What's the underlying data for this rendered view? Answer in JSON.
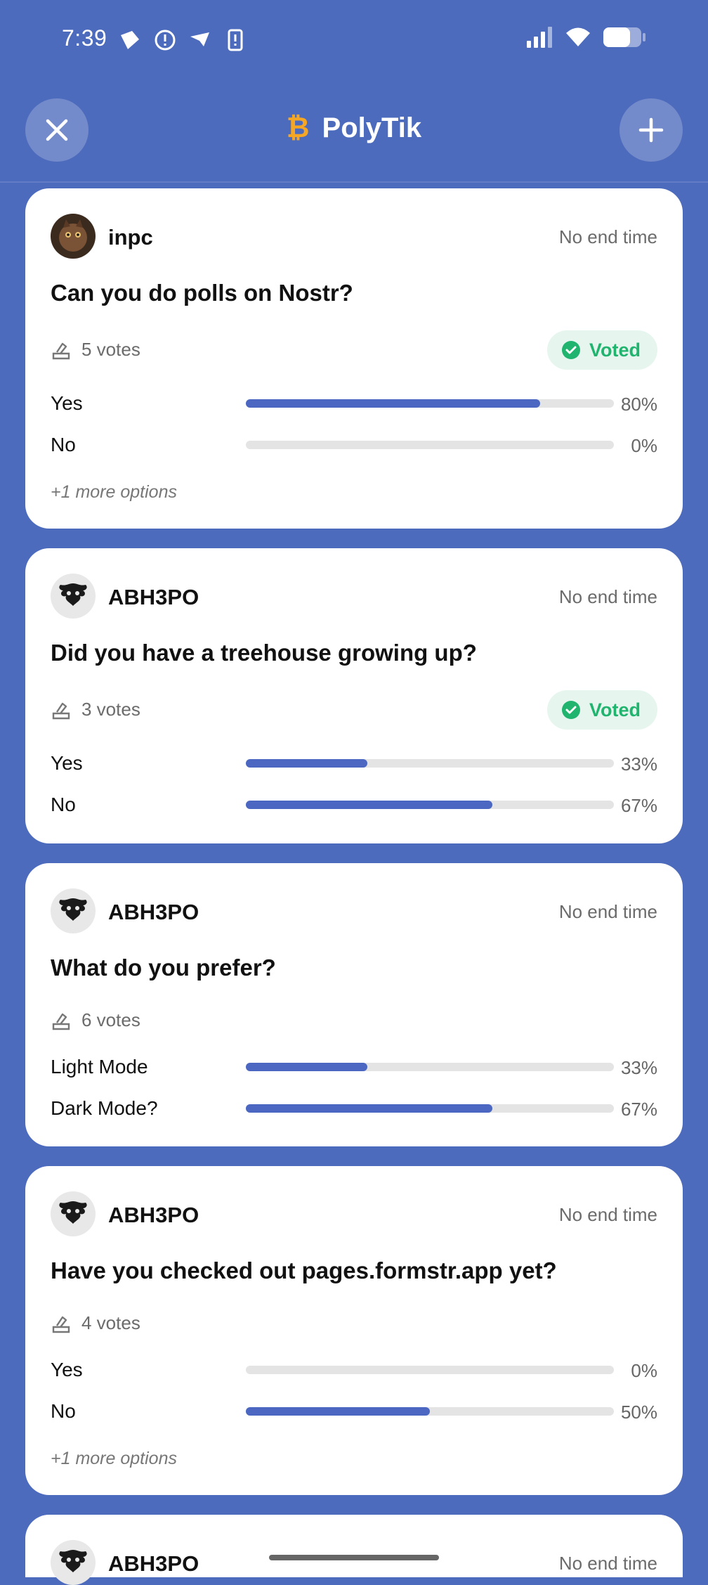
{
  "status_bar": {
    "time": "7:39"
  },
  "header": {
    "title": "PolyTik",
    "title_icon": "bitcoin-icon",
    "accent": "#f5a623"
  },
  "polls": [
    {
      "author": "inpc",
      "end_time": "No end time",
      "question": "Can you do polls on Nostr?",
      "votes": "5 votes",
      "voted": true,
      "voted_label": "Voted",
      "options": [
        {
          "label": "Yes",
          "pct": "80%",
          "value": 0.8
        },
        {
          "label": "No",
          "pct": "0%",
          "value": 0.0
        }
      ],
      "more": "+1 more options"
    },
    {
      "author": "ABH3PO",
      "end_time": "No end time",
      "question": "Did you have a treehouse growing up?",
      "votes": "3 votes",
      "voted": true,
      "voted_label": "Voted",
      "options": [
        {
          "label": "Yes",
          "pct": "33%",
          "value": 0.33
        },
        {
          "label": "No",
          "pct": "67%",
          "value": 0.67
        }
      ]
    },
    {
      "author": "ABH3PO",
      "end_time": "No end time",
      "question": "What do you prefer?",
      "votes": "6 votes",
      "voted": false,
      "options": [
        {
          "label": "Light Mode",
          "pct": "33%",
          "value": 0.33
        },
        {
          "label": "Dark Mode?",
          "pct": "67%",
          "value": 0.67
        }
      ]
    },
    {
      "author": "ABH3PO",
      "end_time": "No end time",
      "question": "Have you checked out pages.formstr.app yet?",
      "votes": "4 votes",
      "voted": false,
      "options": [
        {
          "label": "Yes",
          "pct": "0%",
          "value": 0.0
        },
        {
          "label": "No",
          "pct": "50%",
          "value": 0.5
        }
      ],
      "more": "+1 more options"
    },
    {
      "author": "ABH3PO",
      "end_time": "No end time"
    }
  ]
}
